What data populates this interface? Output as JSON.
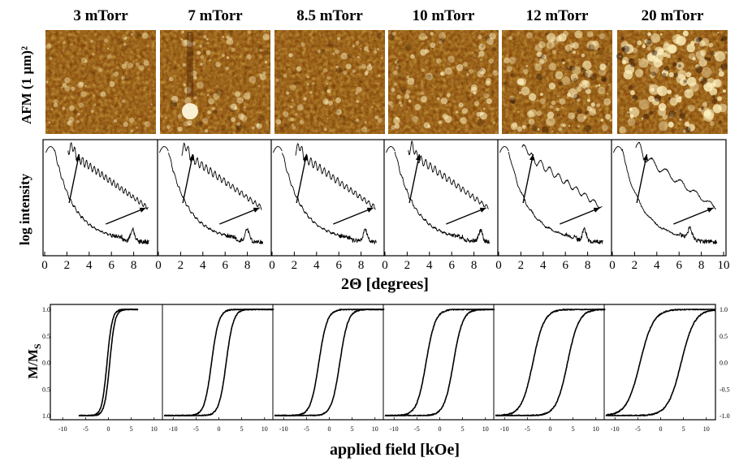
{
  "figure": {
    "pressures": [
      "3 mTorr",
      "7 mTorr",
      "8.5 mTorr",
      "10 mTorr",
      "12 mTorr",
      "20 mTorr"
    ],
    "row_labels": {
      "afm": "AFM (1 µm)²",
      "xrr": "log intensity",
      "mag": "M/M",
      "mag_sub": "S"
    },
    "xrr_xlabel": "2Θ [degrees]",
    "mag_xlabel": "applied field [kOe]"
  },
  "chart_data": [
    {
      "type": "heatmap",
      "name": "AFM (1 µm)²",
      "panels": [
        "3 mTorr",
        "7 mTorr",
        "8.5 mTorr",
        "10 mTorr",
        "12 mTorr",
        "20 mTorr"
      ],
      "grain_contrast": [
        0.35,
        0.5,
        0.45,
        0.55,
        0.8,
        1.0
      ],
      "colors": {
        "low": "#2a0800",
        "mid": "#a85a0a",
        "high": "#fff5cc"
      }
    },
    {
      "type": "line",
      "ylabel": "log intensity",
      "xlabel": "2Θ [degrees]",
      "xlim": [
        0,
        10
      ],
      "xticks": [
        0,
        2,
        4,
        6,
        8
      ],
      "xticks_last": [
        0,
        2,
        4,
        6,
        8,
        10
      ],
      "series": [
        {
          "pressure": "3 mTorr",
          "fringe_period": 0.35,
          "peak_x": 7.9
        },
        {
          "pressure": "7 mTorr",
          "fringe_period": 0.4,
          "peak_x": 8.0
        },
        {
          "pressure": "8.5 mTorr",
          "fringe_period": 0.4,
          "peak_x": 8.4
        },
        {
          "pressure": "10 mTorr",
          "fringe_period": 0.42,
          "peak_x": 8.6
        },
        {
          "pressure": "12 mTorr",
          "fringe_period": 0.8,
          "peak_x": 7.7
        },
        {
          "pressure": "20 mTorr",
          "fringe_period": 1.3,
          "peak_x": 7.0
        }
      ]
    },
    {
      "type": "line",
      "ylabel": "M/Ms",
      "xlabel": "applied field [kOe]",
      "xlim": [
        -12,
        12
      ],
      "ylim": [
        -1.0,
        1.0
      ],
      "xticks": [
        -10,
        -5,
        0,
        5,
        10
      ],
      "yticks_left": [
        "1.0",
        "0.5",
        "0.0",
        "0.5",
        "1.0"
      ],
      "yticks_right": [
        "1.0",
        "0.5",
        "0.0",
        "-0.5",
        "-1.0"
      ],
      "series": [
        {
          "pressure": "3 mTorr",
          "coercivity_kOe": 0.3,
          "saturation_kOe": 2.5,
          "field_range_kOe": 6.5
        },
        {
          "pressure": "7 mTorr",
          "coercivity_kOe": 1.6,
          "saturation_kOe": 3.5,
          "field_range_kOe": 12
        },
        {
          "pressure": "8.5 mTorr",
          "coercivity_kOe": 2.3,
          "saturation_kOe": 4.0,
          "field_range_kOe": 12
        },
        {
          "pressure": "10 mTorr",
          "coercivity_kOe": 3.0,
          "saturation_kOe": 4.5,
          "field_range_kOe": 12
        },
        {
          "pressure": "12 mTorr",
          "coercivity_kOe": 3.8,
          "saturation_kOe": 5.5,
          "field_range_kOe": 12
        },
        {
          "pressure": "20 mTorr",
          "coercivity_kOe": 4.5,
          "saturation_kOe": 6.5,
          "field_range_kOe": 12
        }
      ]
    }
  ]
}
